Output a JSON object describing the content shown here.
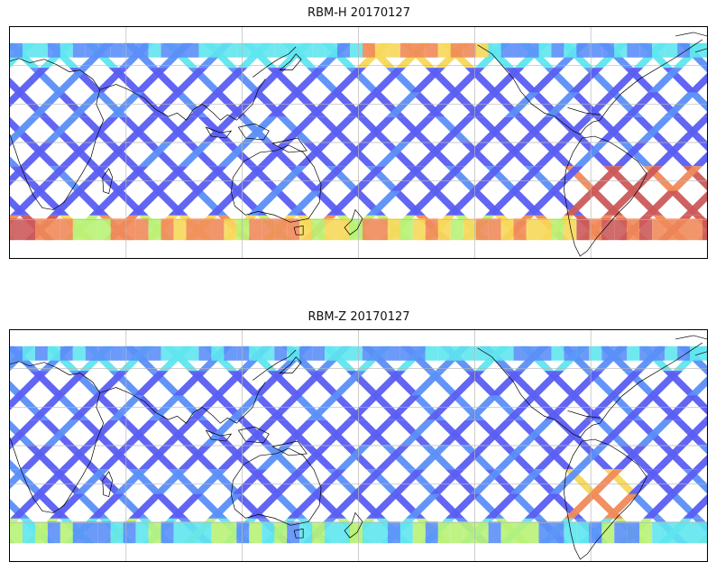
{
  "panels": [
    {
      "title": "RBM-H 20170127",
      "swath_colormap": "jet",
      "palette": {
        "low": "#5a5ef2",
        "mid_low": "#5b8ff8",
        "mid": "#5fe6ee",
        "mid_high": "#b8f277",
        "high": "#f7d85a",
        "very_high": "#f08a5a",
        "max": "#cc5a5a"
      },
      "coastline_color": "#000000",
      "gridline_color": "#b8b8b8"
    },
    {
      "title": "RBM-Z 20170127",
      "swath_colormap": "jet",
      "palette": {
        "low": "#5a5ef2",
        "mid_low": "#5b8ff8",
        "mid": "#5fe6ee",
        "mid_high": "#b8f277",
        "high": "#f7d85a",
        "very_high": "#f08a5a",
        "max": "#cc5a5a"
      },
      "coastline_color": "#000000",
      "gridline_color": "#b8b8b8"
    }
  ]
}
